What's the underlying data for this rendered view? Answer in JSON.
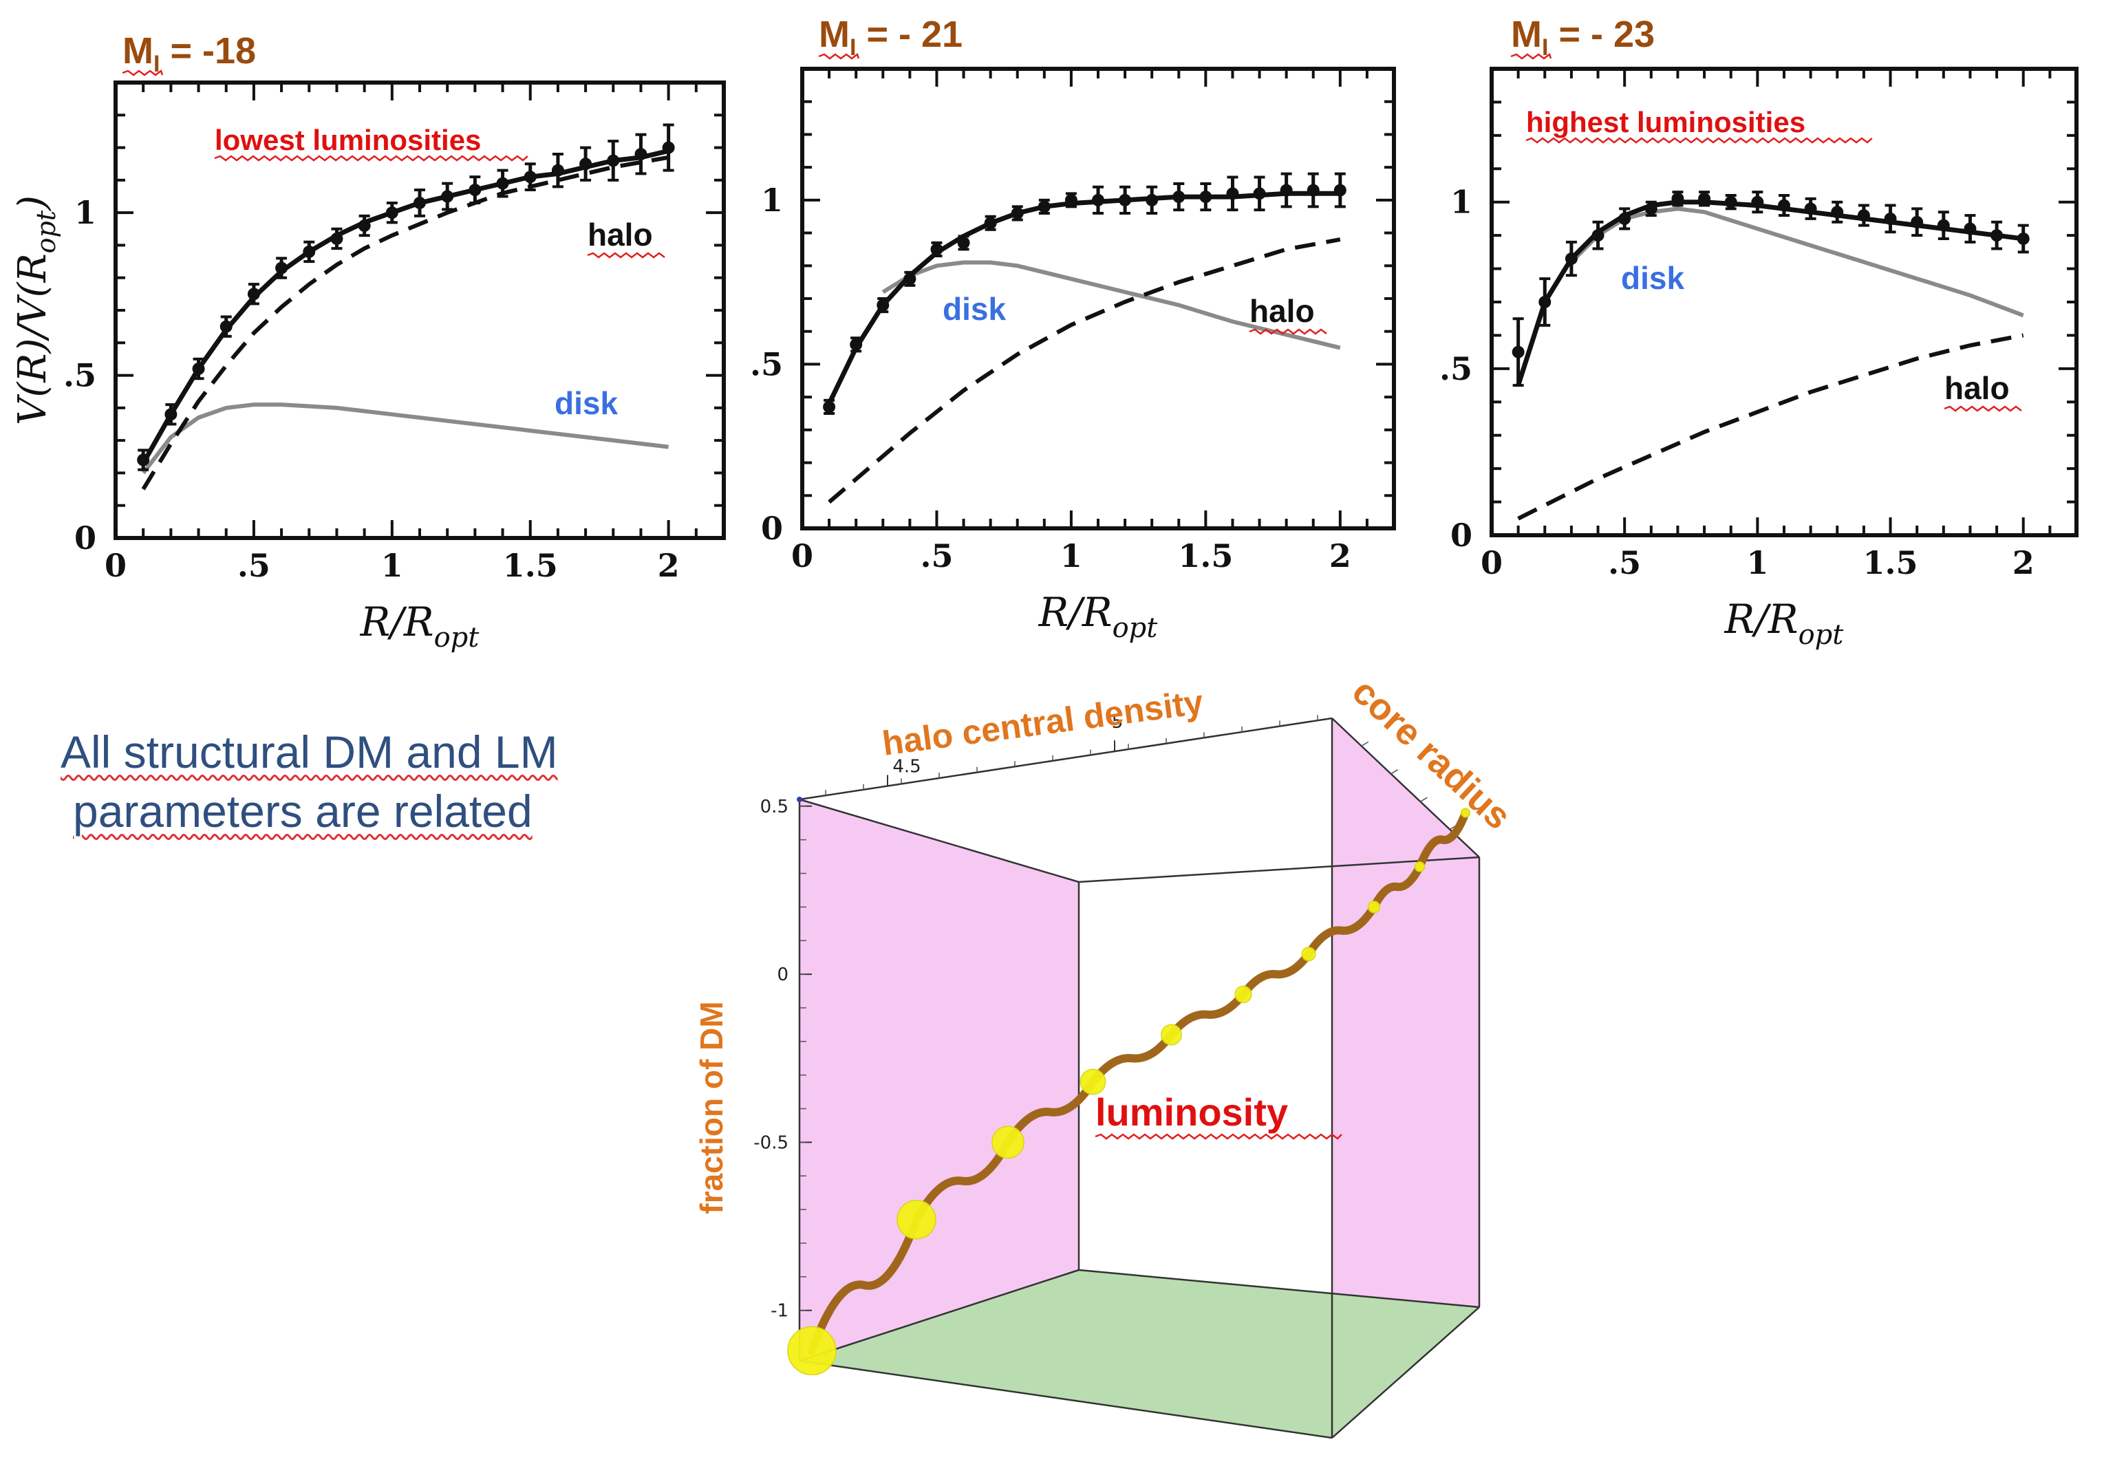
{
  "colors": {
    "title": "#9a4b0e",
    "label_red": "#e01010",
    "label_blue": "#3a6fe0",
    "label_black": "#111111",
    "orange": "#e0761e",
    "pink_wall": "#f6c9f3",
    "green_floor": "#b9ddb0",
    "curve": "#a0671c",
    "marker": "#f4f215",
    "note": "#2f4f7f"
  },
  "note": {
    "line1": "All structural  DM and LM",
    "line2": "parameters are related"
  },
  "chart_data": [
    {
      "type": "line",
      "title": "MI = -18",
      "title_main": "M",
      "title_sub": "I",
      "title_rest": " = -18",
      "xlabel": "R/Ropt",
      "ylabel": "V(R)/V(Ropt)",
      "xlim": [
        0,
        2.2
      ],
      "ylim": [
        0,
        1.4
      ],
      "x_ticks": [
        "0",
        ".5",
        "1",
        "1.5",
        "2"
      ],
      "x_tick_values": [
        0,
        0.5,
        1,
        1.5,
        2
      ],
      "y_ticks": [
        "0",
        ".5",
        "1"
      ],
      "y_tick_values": [
        0,
        0.5,
        1
      ],
      "annotation": "lowest luminosities",
      "label_halo": "halo",
      "label_disk": "disk",
      "series": [
        {
          "name": "total",
          "x": [
            0.1,
            0.2,
            0.3,
            0.4,
            0.5,
            0.6,
            0.7,
            0.8,
            0.9,
            1.0,
            1.1,
            1.2,
            1.3,
            1.4,
            1.5,
            1.6,
            1.7,
            1.8,
            1.9,
            2.0
          ],
          "values": [
            0.23,
            0.38,
            0.52,
            0.64,
            0.74,
            0.82,
            0.88,
            0.93,
            0.97,
            1.0,
            1.03,
            1.05,
            1.07,
            1.09,
            1.11,
            1.12,
            1.14,
            1.16,
            1.17,
            1.19
          ]
        },
        {
          "name": "halo",
          "x": [
            0.1,
            0.2,
            0.3,
            0.4,
            0.5,
            0.6,
            0.7,
            0.8,
            0.9,
            1.0,
            1.2,
            1.4,
            1.6,
            1.8,
            2.0
          ],
          "values": [
            0.15,
            0.29,
            0.42,
            0.53,
            0.63,
            0.71,
            0.78,
            0.84,
            0.89,
            0.93,
            1.0,
            1.06,
            1.1,
            1.14,
            1.17
          ]
        },
        {
          "name": "disk",
          "x": [
            0.1,
            0.2,
            0.3,
            0.4,
            0.5,
            0.6,
            0.8,
            1.0,
            1.2,
            1.4,
            1.6,
            1.8,
            2.0
          ],
          "values": [
            0.2,
            0.31,
            0.37,
            0.4,
            0.41,
            0.41,
            0.4,
            0.38,
            0.36,
            0.34,
            0.32,
            0.3,
            0.28
          ]
        },
        {
          "name": "data",
          "x": [
            0.1,
            0.2,
            0.3,
            0.4,
            0.5,
            0.6,
            0.7,
            0.8,
            0.9,
            1.0,
            1.1,
            1.2,
            1.3,
            1.4,
            1.5,
            1.6,
            1.7,
            1.8,
            1.9,
            2.0
          ],
          "values": [
            0.24,
            0.38,
            0.52,
            0.65,
            0.75,
            0.83,
            0.88,
            0.92,
            0.96,
            1.0,
            1.03,
            1.05,
            1.07,
            1.09,
            1.11,
            1.13,
            1.15,
            1.16,
            1.18,
            1.2
          ],
          "err": [
            0.03,
            0.03,
            0.03,
            0.03,
            0.03,
            0.03,
            0.03,
            0.03,
            0.03,
            0.03,
            0.04,
            0.04,
            0.04,
            0.04,
            0.04,
            0.05,
            0.05,
            0.06,
            0.06,
            0.07
          ]
        }
      ]
    },
    {
      "type": "line",
      "title": "MI = - 21",
      "title_main": "M",
      "title_sub": "I",
      "title_rest": " = - 21",
      "xlabel": "R/Ropt",
      "ylabel": "",
      "xlim": [
        0,
        2.2
      ],
      "ylim": [
        0,
        1.4
      ],
      "x_ticks": [
        "0",
        ".5",
        "1",
        "1.5",
        "2"
      ],
      "x_tick_values": [
        0,
        0.5,
        1,
        1.5,
        2
      ],
      "y_ticks": [
        "0",
        ".5",
        "1"
      ],
      "y_tick_values": [
        0,
        0.5,
        1
      ],
      "annotation": "",
      "label_halo": "halo",
      "label_disk": "disk",
      "series": [
        {
          "name": "total",
          "x": [
            0.1,
            0.2,
            0.3,
            0.4,
            0.5,
            0.6,
            0.7,
            0.8,
            0.9,
            1.0,
            1.2,
            1.4,
            1.6,
            1.8,
            2.0
          ],
          "values": [
            0.38,
            0.55,
            0.68,
            0.77,
            0.84,
            0.89,
            0.93,
            0.96,
            0.98,
            0.99,
            1.0,
            1.01,
            1.01,
            1.02,
            1.02
          ]
        },
        {
          "name": "halo",
          "x": [
            0.1,
            0.2,
            0.4,
            0.6,
            0.8,
            1.0,
            1.2,
            1.4,
            1.6,
            1.8,
            2.0
          ],
          "values": [
            0.08,
            0.15,
            0.29,
            0.42,
            0.53,
            0.62,
            0.69,
            0.75,
            0.8,
            0.85,
            0.88
          ]
        },
        {
          "name": "disk",
          "x": [
            0.3,
            0.4,
            0.5,
            0.6,
            0.7,
            0.8,
            1.0,
            1.2,
            1.4,
            1.6,
            1.8,
            2.0
          ],
          "values": [
            0.72,
            0.77,
            0.8,
            0.81,
            0.81,
            0.8,
            0.76,
            0.72,
            0.68,
            0.63,
            0.59,
            0.55
          ]
        },
        {
          "name": "data",
          "x": [
            0.1,
            0.2,
            0.3,
            0.4,
            0.5,
            0.6,
            0.7,
            0.8,
            0.9,
            1.0,
            1.1,
            1.2,
            1.3,
            1.4,
            1.5,
            1.6,
            1.7,
            1.8,
            1.9,
            2.0
          ],
          "values": [
            0.37,
            0.56,
            0.68,
            0.76,
            0.85,
            0.87,
            0.93,
            0.96,
            0.98,
            1.0,
            1.0,
            1.0,
            1.0,
            1.01,
            1.01,
            1.02,
            1.02,
            1.03,
            1.03,
            1.03
          ],
          "err": [
            0.02,
            0.02,
            0.02,
            0.02,
            0.02,
            0.02,
            0.02,
            0.02,
            0.02,
            0.02,
            0.04,
            0.04,
            0.04,
            0.04,
            0.04,
            0.05,
            0.05,
            0.05,
            0.05,
            0.05
          ]
        }
      ]
    },
    {
      "type": "line",
      "title": "MI = - 23",
      "title_main": "M",
      "title_sub": "I",
      "title_rest": " = - 23",
      "xlabel": "R/Ropt",
      "ylabel": "",
      "xlim": [
        0,
        2.2
      ],
      "ylim": [
        0,
        1.4
      ],
      "x_ticks": [
        "0",
        ".5",
        "1",
        "1.5",
        "2"
      ],
      "x_tick_values": [
        0,
        0.5,
        1,
        1.5,
        2
      ],
      "y_ticks": [
        "0",
        ".5",
        "1"
      ],
      "y_tick_values": [
        0,
        0.5,
        1
      ],
      "annotation": "highest  luminosities",
      "label_halo": "halo",
      "label_disk": "disk",
      "series": [
        {
          "name": "total",
          "x": [
            0.1,
            0.2,
            0.3,
            0.4,
            0.5,
            0.6,
            0.7,
            0.8,
            1.0,
            1.2,
            1.4,
            1.6,
            1.8,
            2.0
          ],
          "values": [
            0.45,
            0.7,
            0.83,
            0.91,
            0.96,
            0.99,
            1.0,
            1.0,
            0.99,
            0.97,
            0.95,
            0.93,
            0.91,
            0.89
          ]
        },
        {
          "name": "halo",
          "x": [
            0.1,
            0.2,
            0.4,
            0.6,
            0.8,
            1.0,
            1.2,
            1.4,
            1.6,
            1.8,
            2.0
          ],
          "values": [
            0.05,
            0.09,
            0.17,
            0.24,
            0.31,
            0.37,
            0.43,
            0.48,
            0.53,
            0.57,
            0.6
          ]
        },
        {
          "name": "disk",
          "x": [
            0.3,
            0.4,
            0.5,
            0.6,
            0.7,
            0.8,
            1.0,
            1.2,
            1.4,
            1.6,
            1.8,
            2.0
          ],
          "values": [
            0.82,
            0.9,
            0.95,
            0.97,
            0.98,
            0.97,
            0.92,
            0.87,
            0.82,
            0.77,
            0.72,
            0.66
          ]
        },
        {
          "name": "data",
          "x": [
            0.1,
            0.2,
            0.3,
            0.4,
            0.5,
            0.6,
            0.7,
            0.8,
            0.9,
            1.0,
            1.1,
            1.2,
            1.3,
            1.4,
            1.5,
            1.6,
            1.7,
            1.8,
            1.9,
            2.0
          ],
          "values": [
            0.55,
            0.7,
            0.83,
            0.9,
            0.95,
            0.98,
            1.01,
            1.01,
            1.0,
            1.0,
            0.99,
            0.98,
            0.97,
            0.96,
            0.95,
            0.94,
            0.93,
            0.92,
            0.9,
            0.89
          ],
          "err": [
            0.1,
            0.07,
            0.05,
            0.04,
            0.03,
            0.02,
            0.02,
            0.02,
            0.02,
            0.03,
            0.03,
            0.03,
            0.03,
            0.03,
            0.04,
            0.04,
            0.04,
            0.04,
            0.04,
            0.04
          ]
        }
      ]
    },
    {
      "type": "scatter",
      "subtype": "3d-curve",
      "title": "",
      "xlabel": "halo central density",
      "ylabel": "core radius",
      "zlabel": "fraction of DM",
      "curve_label": "luminosity",
      "x_ticks": [
        "4.5",
        "5"
      ],
      "z_ticks": [
        "0.5",
        "0",
        "-0.5",
        "-1"
      ],
      "z_tick_values": [
        0.5,
        0,
        -0.5,
        -1
      ],
      "zlim": [
        -1.15,
        0.52
      ],
      "points": [
        {
          "t": 0.0,
          "z": -1.12,
          "size": 5
        },
        {
          "t": 0.16,
          "z": -0.73,
          "size": 4
        },
        {
          "t": 0.3,
          "z": -0.5,
          "size": 3.3
        },
        {
          "t": 0.43,
          "z": -0.32,
          "size": 2.6
        },
        {
          "t": 0.55,
          "z": -0.18,
          "size": 2.1
        },
        {
          "t": 0.66,
          "z": -0.06,
          "size": 1.7
        },
        {
          "t": 0.76,
          "z": 0.06,
          "size": 1.4
        },
        {
          "t": 0.86,
          "z": 0.2,
          "size": 1.2
        },
        {
          "t": 0.93,
          "z": 0.32,
          "size": 1.0
        },
        {
          "t": 1.0,
          "z": 0.48,
          "size": 0.9
        }
      ]
    }
  ]
}
